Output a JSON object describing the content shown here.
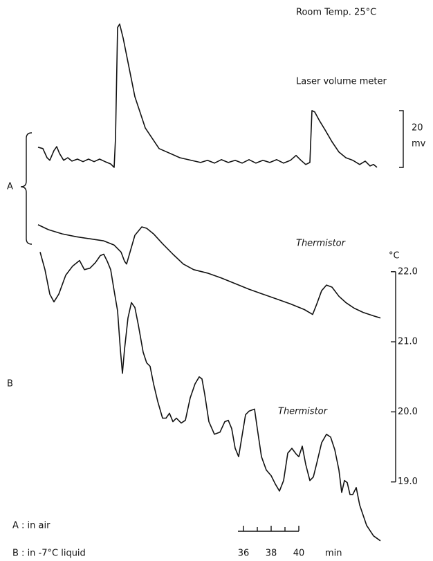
{
  "chart_data": {
    "type": "line",
    "title": "Room Temp. 25°C",
    "xlabel": "min",
    "xlim": [
      20.4,
      47.4
    ],
    "xticks": [
      36,
      38,
      40
    ],
    "xminor": [
      37,
      39
    ],
    "ylabel": "°C",
    "ylim": [
      18.0,
      25.7
    ],
    "yticks": [
      {
        "value": 22,
        "label": "22.0"
      },
      {
        "value": 21,
        "label": "21.0"
      },
      {
        "value": 20,
        "label": "20.0"
      },
      {
        "value": 19,
        "label": "19.0"
      }
    ],
    "y2lim": [
      -136.1,
      54.1
    ],
    "y2_scale_bar": 20,
    "y2label": "mv",
    "groups": [
      {
        "name": "A",
        "description": "A : in air"
      },
      {
        "name": "B",
        "description": "B : in -7°C liquid"
      }
    ],
    "series": [
      {
        "name": "Laser volume meter",
        "axis": "y2",
        "color": "#111111",
        "x": [
          21.15,
          21.5,
          21.8,
          22.0,
          22.3,
          22.5,
          22.7,
          23.0,
          23.3,
          23.6,
          24.0,
          24.4,
          24.8,
          25.2,
          25.6,
          26.0,
          26.4,
          26.65,
          26.75,
          26.9,
          27.05,
          27.3,
          27.65,
          28.15,
          28.9,
          29.9,
          31.4,
          32.9,
          33.4,
          33.9,
          34.4,
          34.9,
          35.4,
          35.9,
          36.4,
          36.9,
          37.4,
          37.9,
          38.4,
          38.9,
          39.4,
          39.8,
          40.15,
          40.5,
          40.8,
          40.95,
          41.15,
          41.5,
          41.9,
          42.4,
          42.9,
          43.4,
          43.9,
          44.4,
          44.8,
          45.15,
          45.4,
          45.65
        ],
        "values": [
          6.6,
          6.1,
          2.9,
          2.0,
          5.4,
          6.8,
          4.4,
          2.0,
          2.9,
          1.7,
          2.4,
          1.5,
          2.4,
          1.5,
          2.4,
          1.5,
          0.7,
          -0.5,
          9.8,
          48.8,
          50.0,
          45.1,
          36.6,
          24.4,
          13.4,
          6.1,
          2.9,
          1.2,
          2.0,
          1.0,
          2.2,
          1.2,
          2.0,
          1.0,
          2.2,
          1.0,
          2.0,
          1.2,
          2.2,
          1.0,
          2.0,
          3.7,
          2.0,
          0.5,
          1.2,
          19.5,
          19.0,
          15.9,
          12.7,
          8.5,
          4.9,
          2.9,
          2.0,
          0.5,
          1.7,
          0.0,
          0.5,
          -0.5
        ]
      },
      {
        "name": "Thermistor",
        "color": "#111111",
        "x": [
          21.15,
          21.9,
          22.9,
          23.9,
          24.9,
          25.9,
          26.65,
          27.15,
          27.4,
          27.55,
          27.8,
          28.15,
          28.65,
          29.0,
          29.5,
          30.15,
          30.9,
          31.65,
          32.4,
          33.4,
          34.4,
          35.4,
          36.4,
          37.4,
          38.4,
          39.4,
          40.4,
          41.0,
          41.3,
          41.65,
          42.0,
          42.4,
          42.9,
          43.4,
          44.0,
          44.65,
          45.4,
          45.9
        ],
        "values": [
          22.67,
          22.6,
          22.54,
          22.5,
          22.47,
          22.44,
          22.38,
          22.28,
          22.15,
          22.11,
          22.28,
          22.52,
          22.64,
          22.62,
          22.54,
          22.4,
          22.25,
          22.11,
          22.03,
          21.98,
          21.91,
          21.83,
          21.75,
          21.68,
          21.61,
          21.54,
          21.46,
          21.39,
          21.54,
          21.73,
          21.81,
          21.78,
          21.65,
          21.56,
          21.48,
          21.42,
          21.37,
          21.34
        ]
      },
      {
        "name": "Thermistor",
        "color": "#111111",
        "x": [
          21.3,
          21.65,
          22.0,
          22.3,
          22.65,
          23.15,
          23.65,
          24.15,
          24.5,
          24.9,
          25.3,
          25.65,
          25.9,
          26.15,
          26.4,
          26.65,
          26.9,
          27.1,
          27.25,
          27.4,
          27.65,
          27.9,
          28.15,
          28.4,
          28.75,
          29.0,
          29.25,
          29.5,
          29.8,
          30.15,
          30.4,
          30.65,
          30.9,
          31.15,
          31.5,
          31.8,
          32.15,
          32.5,
          32.8,
          33.0,
          33.2,
          33.5,
          33.9,
          34.3,
          34.65,
          34.9,
          35.15,
          35.4,
          35.65,
          35.9,
          36.15,
          36.4,
          36.8,
          37.0,
          37.3,
          37.65,
          38.0,
          38.3,
          38.6,
          38.9,
          39.2,
          39.5,
          39.8,
          40.0,
          40.25,
          40.5,
          40.8,
          41.05,
          41.3,
          41.65,
          42.0,
          42.3,
          42.6,
          42.9,
          43.1,
          43.3,
          43.5,
          43.7,
          43.9,
          44.15,
          44.4,
          44.9,
          45.4,
          45.9
        ],
        "values": [
          22.28,
          22.03,
          21.68,
          21.57,
          21.68,
          21.95,
          22.08,
          22.16,
          22.03,
          22.05,
          22.13,
          22.23,
          22.25,
          22.15,
          22.03,
          21.73,
          21.44,
          20.89,
          20.55,
          20.89,
          21.34,
          21.56,
          21.49,
          21.24,
          20.85,
          20.7,
          20.65,
          20.4,
          20.15,
          19.91,
          19.91,
          19.98,
          19.86,
          19.91,
          19.84,
          19.88,
          20.2,
          20.4,
          20.5,
          20.47,
          20.25,
          19.86,
          19.68,
          19.71,
          19.86,
          19.88,
          19.76,
          19.48,
          19.36,
          19.66,
          19.96,
          20.01,
          20.04,
          19.76,
          19.36,
          19.17,
          19.09,
          18.97,
          18.87,
          19.02,
          19.41,
          19.48,
          19.4,
          19.36,
          19.51,
          19.25,
          19.02,
          19.07,
          19.27,
          19.56,
          19.68,
          19.64,
          19.46,
          19.17,
          18.85,
          19.02,
          18.99,
          18.82,
          18.82,
          18.92,
          18.67,
          18.38,
          18.23,
          18.16
        ]
      }
    ]
  }
}
